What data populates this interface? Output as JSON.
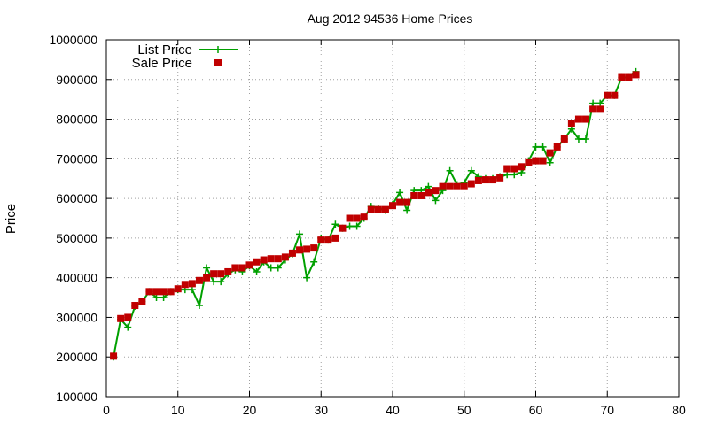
{
  "chart_data": {
    "type": "line",
    "title": "Aug 2012 94536 Home Prices",
    "xlabel": "",
    "ylabel": "Price",
    "xlim": [
      0,
      80
    ],
    "ylim": [
      100000,
      1000000
    ],
    "x_ticks": [
      "0",
      "10",
      "20",
      "30",
      "40",
      "50",
      "60",
      "70",
      "80"
    ],
    "y_ticks": [
      "100000",
      "200000",
      "300000",
      "400000",
      "500000",
      "600000",
      "700000",
      "800000",
      "900000",
      "1000000"
    ],
    "grid": true,
    "legend_position": "top-left",
    "series": [
      {
        "name": "List Price",
        "color": "#00a000",
        "marker": "plus",
        "x": [
          1,
          2,
          3,
          4,
          5,
          6,
          7,
          8,
          9,
          10,
          11,
          12,
          13,
          14,
          15,
          16,
          17,
          18,
          19,
          20,
          21,
          22,
          23,
          24,
          25,
          26,
          27,
          28,
          29,
          30,
          31,
          32,
          33,
          34,
          35,
          36,
          37,
          38,
          39,
          40,
          41,
          42,
          43,
          44,
          45,
          46,
          47,
          48,
          49,
          50,
          51,
          52,
          53,
          54,
          55,
          56,
          57,
          58,
          59,
          60,
          61,
          62,
          63,
          64,
          65,
          66,
          67,
          68,
          69,
          70,
          71,
          72,
          73,
          74
        ],
        "values": [
          200000,
          295000,
          275000,
          328000,
          340000,
          365000,
          350000,
          350000,
          365000,
          370000,
          370000,
          370000,
          330000,
          425000,
          390000,
          390000,
          410000,
          420000,
          415000,
          430000,
          415000,
          440000,
          425000,
          425000,
          445000,
          460000,
          510000,
          400000,
          440000,
          500000,
          495000,
          535000,
          525000,
          530000,
          530000,
          550000,
          580000,
          575000,
          570000,
          585000,
          615000,
          570000,
          620000,
          620000,
          630000,
          595000,
          620000,
          670000,
          635000,
          640000,
          670000,
          655000,
          650000,
          650000,
          655000,
          660000,
          660000,
          665000,
          695000,
          730000,
          730000,
          690000,
          730000,
          750000,
          775000,
          750000,
          750000,
          840000,
          840000,
          860000,
          860000,
          905000,
          905000,
          920000
        ]
      },
      {
        "name": "Sale Price",
        "color": "#c00000",
        "marker": "square",
        "x": [
          1,
          2,
          3,
          4,
          5,
          6,
          7,
          8,
          9,
          10,
          11,
          12,
          13,
          14,
          15,
          16,
          17,
          18,
          19,
          20,
          21,
          22,
          23,
          24,
          25,
          26,
          27,
          28,
          29,
          30,
          31,
          32,
          33,
          34,
          35,
          36,
          37,
          38,
          39,
          40,
          41,
          42,
          43,
          44,
          45,
          46,
          47,
          48,
          49,
          50,
          51,
          52,
          53,
          54,
          55,
          56,
          57,
          58,
          59,
          60,
          61,
          62,
          63,
          64,
          65,
          66,
          67,
          68,
          69,
          70,
          71,
          72,
          73,
          74
        ],
        "values": [
          202000,
          297000,
          300000,
          330000,
          340000,
          365000,
          365000,
          365000,
          365000,
          372000,
          383000,
          385000,
          393000,
          400000,
          410000,
          410000,
          415000,
          425000,
          425000,
          432000,
          440000,
          445000,
          448000,
          448000,
          452000,
          462000,
          470000,
          472000,
          475000,
          495000,
          495000,
          500000,
          525000,
          550000,
          550000,
          553000,
          572000,
          572000,
          572000,
          582000,
          590000,
          590000,
          607000,
          607000,
          615000,
          620000,
          630000,
          630000,
          630000,
          630000,
          637000,
          645000,
          647000,
          647000,
          652000,
          675000,
          675000,
          680000,
          690000,
          695000,
          695000,
          715000,
          730000,
          750000,
          790000,
          800000,
          800000,
          825000,
          825000,
          860000,
          860000,
          905000,
          905000,
          912000
        ]
      }
    ]
  }
}
